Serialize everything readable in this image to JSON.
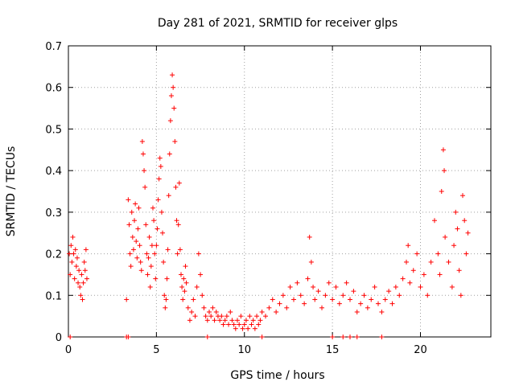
{
  "chart_data": {
    "type": "scatter",
    "title": "Day 281 of 2021, SRMTID for receiver glps",
    "xlabel": "GPS time / hours",
    "ylabel": "SRMTID / TECUs",
    "xlim": [
      0,
      24
    ],
    "ylim": [
      0,
      0.7
    ],
    "x_ticks": [
      0,
      5,
      10,
      15,
      20
    ],
    "y_ticks": [
      0,
      0.1,
      0.2,
      0.3,
      0.4,
      0.5,
      0.6,
      0.7
    ],
    "x_tick_labels": [
      "0",
      "5",
      "10",
      "15",
      "20"
    ],
    "y_tick_labels": [
      "0",
      "0.1",
      "0.2",
      "0.3",
      "0.4",
      "0.5",
      "0.6",
      "0.7"
    ],
    "grid": true,
    "marker": "+",
    "color": "#ff0000",
    "series": [
      {
        "name": "SRMTID",
        "points": [
          [
            0.05,
            0.2
          ],
          [
            0.1,
            0.15
          ],
          [
            0.15,
            0.22
          ],
          [
            0.2,
            0.18
          ],
          [
            0.25,
            0.24
          ],
          [
            0.3,
            0.2
          ],
          [
            0.35,
            0.14
          ],
          [
            0.4,
            0.21
          ],
          [
            0.45,
            0.17
          ],
          [
            0.5,
            0.19
          ],
          [
            0.55,
            0.13
          ],
          [
            0.6,
            0.16
          ],
          [
            0.65,
            0.12
          ],
          [
            0.7,
            0.1
          ],
          [
            0.75,
            0.15
          ],
          [
            0.8,
            0.09
          ],
          [
            0.85,
            0.13
          ],
          [
            0.9,
            0.18
          ],
          [
            0.95,
            0.16
          ],
          [
            1.0,
            0.21
          ],
          [
            1.05,
            0.14
          ],
          [
            3.3,
            0.09
          ],
          [
            3.4,
            0.33
          ],
          [
            3.45,
            0.27
          ],
          [
            3.5,
            0.2
          ],
          [
            3.55,
            0.17
          ],
          [
            3.6,
            0.3
          ],
          [
            3.65,
            0.24
          ],
          [
            3.7,
            0.21
          ],
          [
            3.75,
            0.28
          ],
          [
            3.8,
            0.32
          ],
          [
            3.85,
            0.23
          ],
          [
            3.9,
            0.19
          ],
          [
            3.95,
            0.26
          ],
          [
            4.0,
            0.31
          ],
          [
            4.05,
            0.22
          ],
          [
            4.1,
            0.18
          ],
          [
            4.15,
            0.16
          ],
          [
            4.2,
            0.47
          ],
          [
            4.25,
            0.44
          ],
          [
            4.3,
            0.4
          ],
          [
            4.35,
            0.36
          ],
          [
            4.4,
            0.27
          ],
          [
            4.45,
            0.2
          ],
          [
            4.5,
            0.15
          ],
          [
            4.55,
            0.19
          ],
          [
            4.6,
            0.24
          ],
          [
            4.65,
            0.12
          ],
          [
            4.7,
            0.17
          ],
          [
            4.75,
            0.22
          ],
          [
            4.8,
            0.31
          ],
          [
            4.85,
            0.28
          ],
          [
            4.9,
            0.2
          ],
          [
            4.95,
            0.14
          ],
          [
            5.0,
            0.22
          ],
          [
            5.05,
            0.26
          ],
          [
            5.1,
            0.33
          ],
          [
            5.15,
            0.38
          ],
          [
            5.2,
            0.43
          ],
          [
            5.25,
            0.41
          ],
          [
            5.3,
            0.3
          ],
          [
            5.35,
            0.25
          ],
          [
            5.4,
            0.18
          ],
          [
            5.45,
            0.1
          ],
          [
            5.5,
            0.07
          ],
          [
            5.55,
            0.09
          ],
          [
            5.6,
            0.14
          ],
          [
            5.65,
            0.21
          ],
          [
            5.7,
            0.34
          ],
          [
            5.75,
            0.44
          ],
          [
            5.8,
            0.52
          ],
          [
            5.85,
            0.58
          ],
          [
            5.9,
            0.63
          ],
          [
            5.95,
            0.6
          ],
          [
            6.0,
            0.55
          ],
          [
            6.05,
            0.47
          ],
          [
            6.1,
            0.36
          ],
          [
            6.15,
            0.28
          ],
          [
            6.2,
            0.2
          ],
          [
            6.25,
            0.27
          ],
          [
            6.3,
            0.37
          ],
          [
            6.35,
            0.21
          ],
          [
            6.4,
            0.15
          ],
          [
            6.45,
            0.12
          ],
          [
            6.5,
            0.09
          ],
          [
            6.55,
            0.14
          ],
          [
            6.6,
            0.11
          ],
          [
            6.65,
            0.17
          ],
          [
            6.7,
            0.13
          ],
          [
            6.8,
            0.07
          ],
          [
            6.9,
            0.04
          ],
          [
            7.0,
            0.06
          ],
          [
            7.1,
            0.09
          ],
          [
            7.2,
            0.05
          ],
          [
            7.3,
            0.12
          ],
          [
            7.4,
            0.2
          ],
          [
            7.5,
            0.15
          ],
          [
            7.6,
            0.1
          ],
          [
            7.7,
            0.07
          ],
          [
            7.8,
            0.05
          ],
          [
            7.9,
            0.04
          ],
          [
            8.0,
            0.06
          ],
          [
            8.1,
            0.05
          ],
          [
            8.2,
            0.07
          ],
          [
            8.3,
            0.04
          ],
          [
            8.4,
            0.06
          ],
          [
            8.5,
            0.05
          ],
          [
            8.6,
            0.04
          ],
          [
            8.7,
            0.05
          ],
          [
            8.8,
            0.03
          ],
          [
            8.9,
            0.04
          ],
          [
            9.0,
            0.05
          ],
          [
            9.1,
            0.03
          ],
          [
            9.2,
            0.06
          ],
          [
            9.3,
            0.04
          ],
          [
            9.4,
            0.03
          ],
          [
            9.5,
            0.02
          ],
          [
            9.6,
            0.04
          ],
          [
            9.7,
            0.03
          ],
          [
            9.8,
            0.05
          ],
          [
            9.9,
            0.02
          ],
          [
            10.0,
            0.03
          ],
          [
            10.1,
            0.04
          ],
          [
            10.2,
            0.02
          ],
          [
            10.3,
            0.05
          ],
          [
            10.4,
            0.03
          ],
          [
            10.5,
            0.04
          ],
          [
            10.6,
            0.02
          ],
          [
            10.7,
            0.05
          ],
          [
            10.8,
            0.03
          ],
          [
            10.9,
            0.04
          ],
          [
            11.0,
            0.06
          ],
          [
            11.2,
            0.05
          ],
          [
            11.4,
            0.07
          ],
          [
            11.6,
            0.09
          ],
          [
            11.8,
            0.06
          ],
          [
            12.0,
            0.08
          ],
          [
            12.2,
            0.1
          ],
          [
            12.4,
            0.07
          ],
          [
            12.6,
            0.12
          ],
          [
            12.8,
            0.09
          ],
          [
            13.0,
            0.13
          ],
          [
            13.2,
            0.1
          ],
          [
            13.4,
            0.08
          ],
          [
            13.6,
            0.14
          ],
          [
            13.7,
            0.24
          ],
          [
            13.8,
            0.18
          ],
          [
            13.9,
            0.12
          ],
          [
            14.0,
            0.09
          ],
          [
            14.2,
            0.11
          ],
          [
            14.4,
            0.07
          ],
          [
            14.6,
            0.1
          ],
          [
            14.8,
            0.13
          ],
          [
            15.0,
            0.09
          ],
          [
            15.2,
            0.12
          ],
          [
            15.4,
            0.08
          ],
          [
            15.6,
            0.1
          ],
          [
            15.8,
            0.13
          ],
          [
            16.0,
            0.09
          ],
          [
            16.2,
            0.11
          ],
          [
            16.4,
            0.06
          ],
          [
            16.6,
            0.08
          ],
          [
            16.8,
            0.1
          ],
          [
            17.0,
            0.07
          ],
          [
            17.2,
            0.09
          ],
          [
            17.4,
            0.12
          ],
          [
            17.6,
            0.08
          ],
          [
            17.8,
            0.06
          ],
          [
            18.0,
            0.09
          ],
          [
            18.2,
            0.11
          ],
          [
            18.4,
            0.08
          ],
          [
            18.6,
            0.12
          ],
          [
            18.8,
            0.1
          ],
          [
            19.0,
            0.14
          ],
          [
            19.2,
            0.18
          ],
          [
            19.3,
            0.22
          ],
          [
            19.4,
            0.13
          ],
          [
            19.6,
            0.16
          ],
          [
            19.8,
            0.2
          ],
          [
            20.0,
            0.12
          ],
          [
            20.2,
            0.15
          ],
          [
            20.4,
            0.1
          ],
          [
            20.6,
            0.18
          ],
          [
            20.8,
            0.28
          ],
          [
            21.0,
            0.2
          ],
          [
            21.1,
            0.15
          ],
          [
            21.2,
            0.35
          ],
          [
            21.3,
            0.45
          ],
          [
            21.35,
            0.4
          ],
          [
            21.4,
            0.24
          ],
          [
            21.6,
            0.18
          ],
          [
            21.8,
            0.12
          ],
          [
            21.9,
            0.22
          ],
          [
            22.0,
            0.3
          ],
          [
            22.1,
            0.26
          ],
          [
            22.2,
            0.16
          ],
          [
            22.3,
            0.1
          ],
          [
            22.4,
            0.34
          ],
          [
            22.5,
            0.28
          ],
          [
            22.6,
            0.2
          ],
          [
            22.7,
            0.25
          ]
        ]
      }
    ],
    "zero_points_x": [
      0.1,
      3.3,
      3.4,
      7.9,
      11.0,
      15.0,
      15.6,
      16.0,
      16.4,
      17.8
    ]
  }
}
